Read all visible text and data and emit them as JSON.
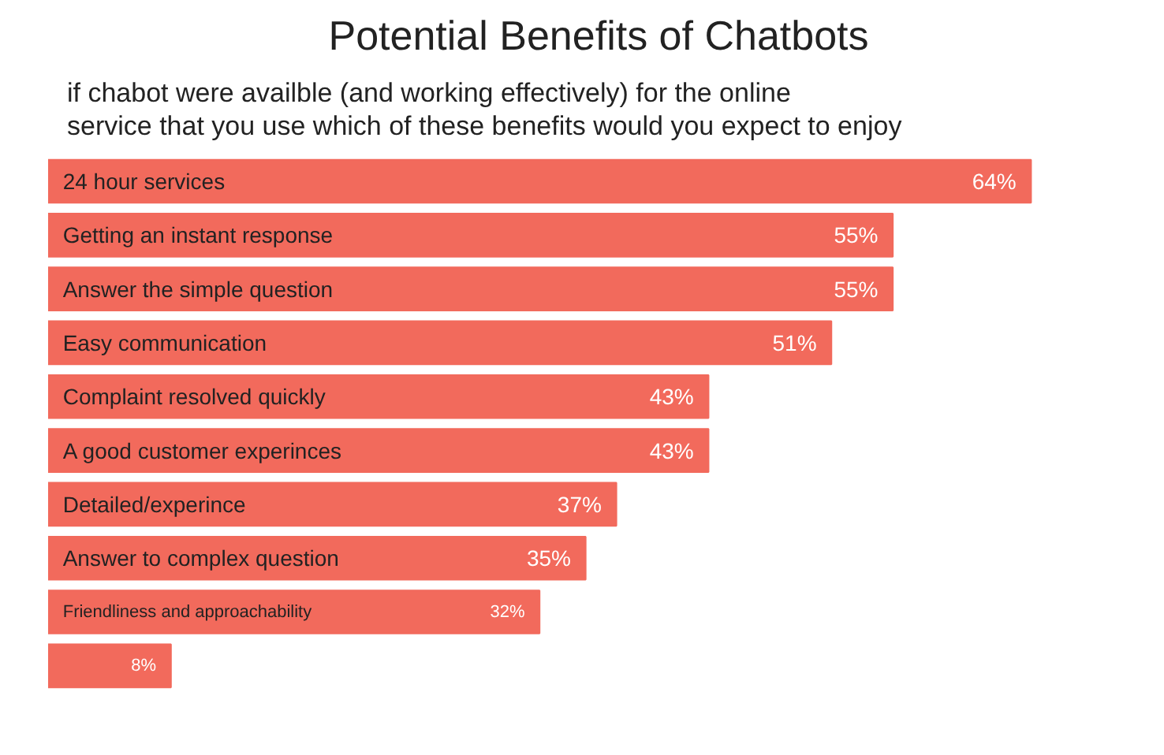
{
  "chart_data": {
    "type": "bar",
    "orientation": "horizontal",
    "title": "Potential Benefits of Chatbots",
    "subtitle": "if chabot were availble (and working effectively) for the online\nservice that you use which of these benefits would you expect to enjoy",
    "categories": [
      "24 hour services",
      "Getting an instant response",
      "Answer the simple question",
      "Easy communication",
      "Complaint resolved quickly",
      "A good customer experinces",
      "Detailed/experince",
      "Answer to complex question",
      "Friendliness and approachability",
      null
    ],
    "values": [
      64,
      55,
      55,
      51,
      43,
      43,
      37,
      35,
      32,
      8
    ],
    "value_labels": [
      "64%",
      "55%",
      "55%",
      "51%",
      "43%",
      "43%",
      "37%",
      "35%",
      "32%",
      "8%"
    ],
    "color": "#f26a5c",
    "grid": false
  }
}
